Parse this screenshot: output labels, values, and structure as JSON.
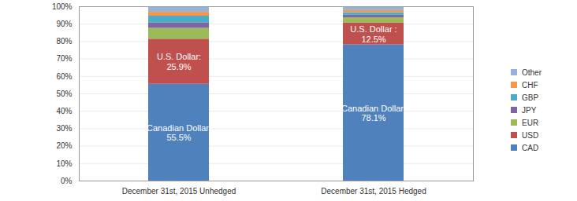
{
  "chart_data": {
    "type": "bar",
    "stacked": true,
    "categories": [
      "December 31st, 2015 Unhedged",
      "December 31st, 2015 Hedged"
    ],
    "series": [
      {
        "name": "CAD",
        "color": "#4F81BD",
        "values": [
          55.5,
          78.1
        ],
        "value_labels": [
          "Canadian Dollar:\n55.5%",
          "Canadian Dollar:\n78.1%"
        ]
      },
      {
        "name": "USD",
        "color": "#C0504D",
        "values": [
          25.9,
          12.5
        ],
        "value_labels": [
          "U.S. Dollar:\n25.9%",
          "U.S. Dollar :\n12.5%"
        ]
      },
      {
        "name": "EUR",
        "color": "#9BBB59",
        "values": [
          6.2,
          3.0
        ]
      },
      {
        "name": "JPY",
        "color": "#8064A2",
        "values": [
          3.0,
          1.5
        ]
      },
      {
        "name": "GBP",
        "color": "#4BACC6",
        "values": [
          4.0,
          1.5
        ]
      },
      {
        "name": "CHF",
        "color": "#F79646",
        "values": [
          2.2,
          1.2
        ]
      },
      {
        "name": "Other",
        "color": "#95B3D7",
        "values": [
          3.2,
          2.2
        ]
      }
    ],
    "ylim": [
      0,
      100
    ],
    "yticks": [
      {
        "value": 0,
        "label": "0%"
      },
      {
        "value": 10,
        "label": "10%"
      },
      {
        "value": 20,
        "label": "20%"
      },
      {
        "value": 30,
        "label": "30%"
      },
      {
        "value": 40,
        "label": "40%"
      },
      {
        "value": 50,
        "label": "50%"
      },
      {
        "value": 60,
        "label": "60%"
      },
      {
        "value": 70,
        "label": "70%"
      },
      {
        "value": 80,
        "label": "80%"
      },
      {
        "value": 90,
        "label": "90%"
      },
      {
        "value": 100,
        "label": "100%"
      }
    ],
    "grid": true,
    "legend": "right"
  }
}
